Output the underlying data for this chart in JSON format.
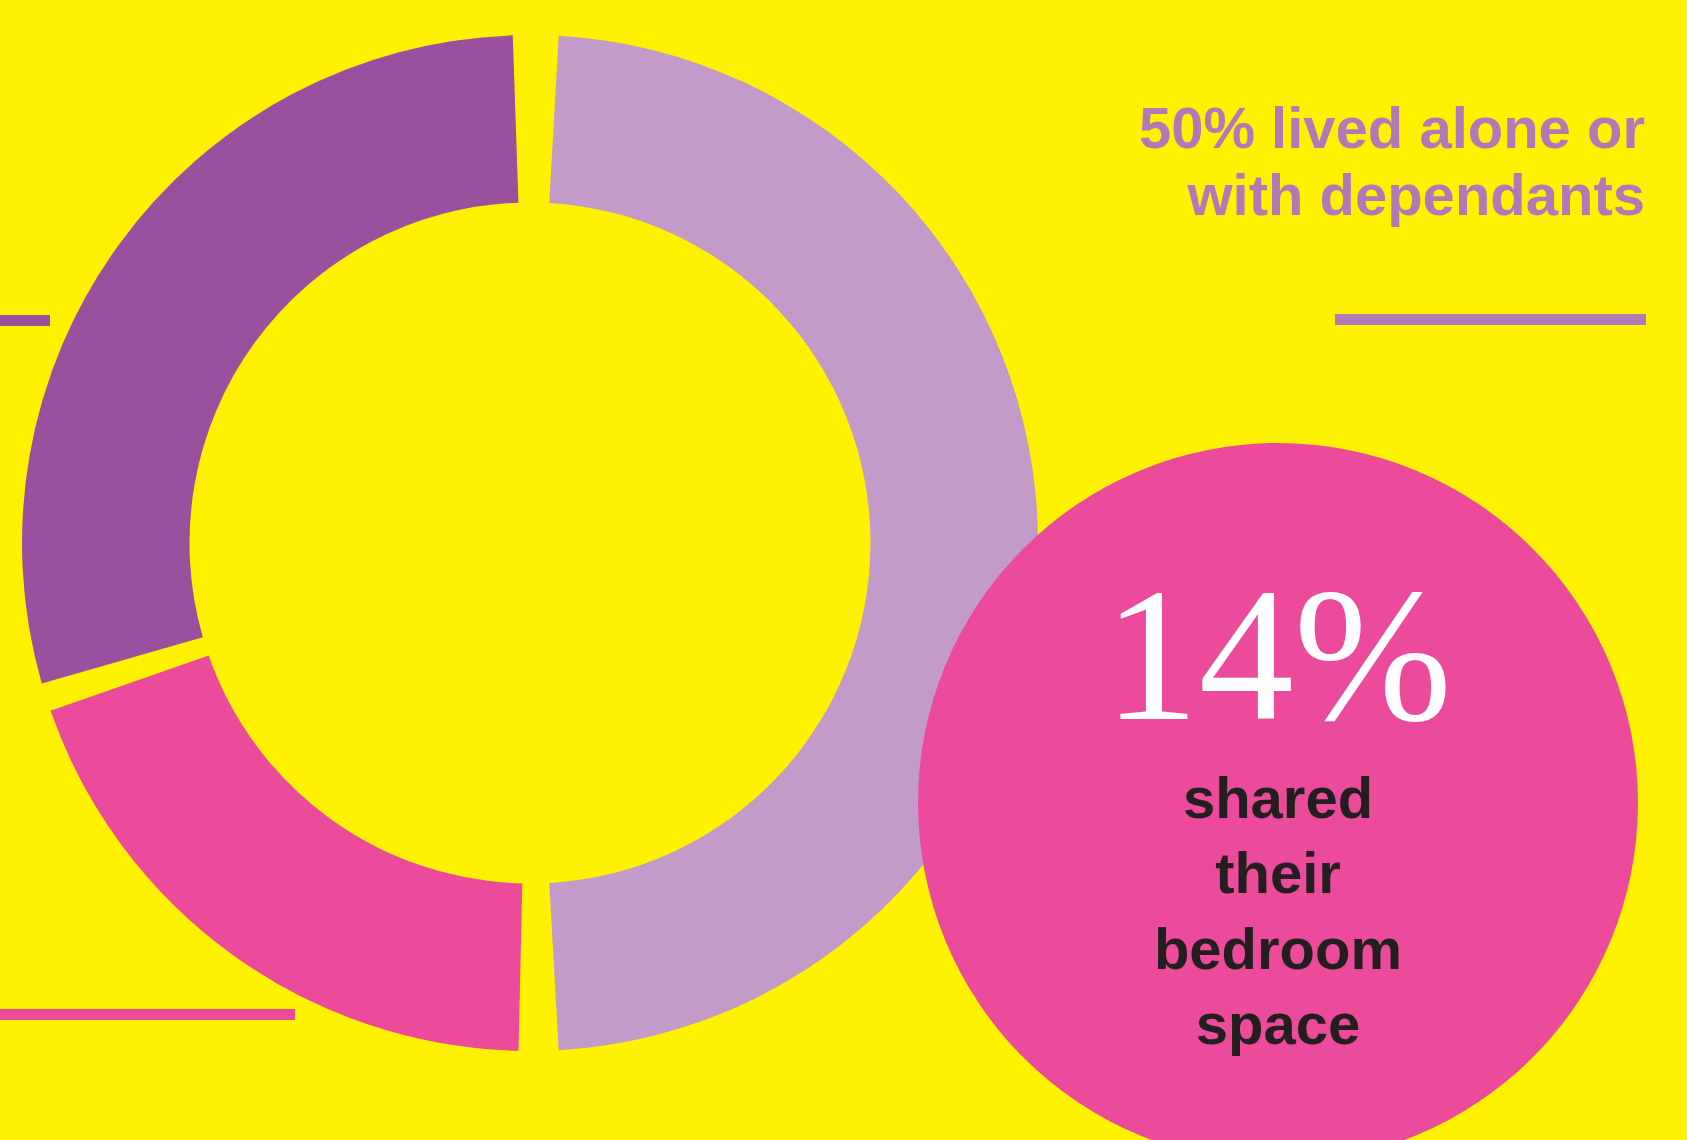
{
  "chart_data": {
    "type": "donut",
    "categories": [
      null,
      null,
      null
    ],
    "values": [
      50,
      20,
      30
    ],
    "colors": [
      "#c39bc9",
      "#ec4b9b",
      "#9b4f9f"
    ],
    "annotations": [
      "50% lived alone or with dependants",
      "14% shared their bedroom space"
    ]
  }
}
